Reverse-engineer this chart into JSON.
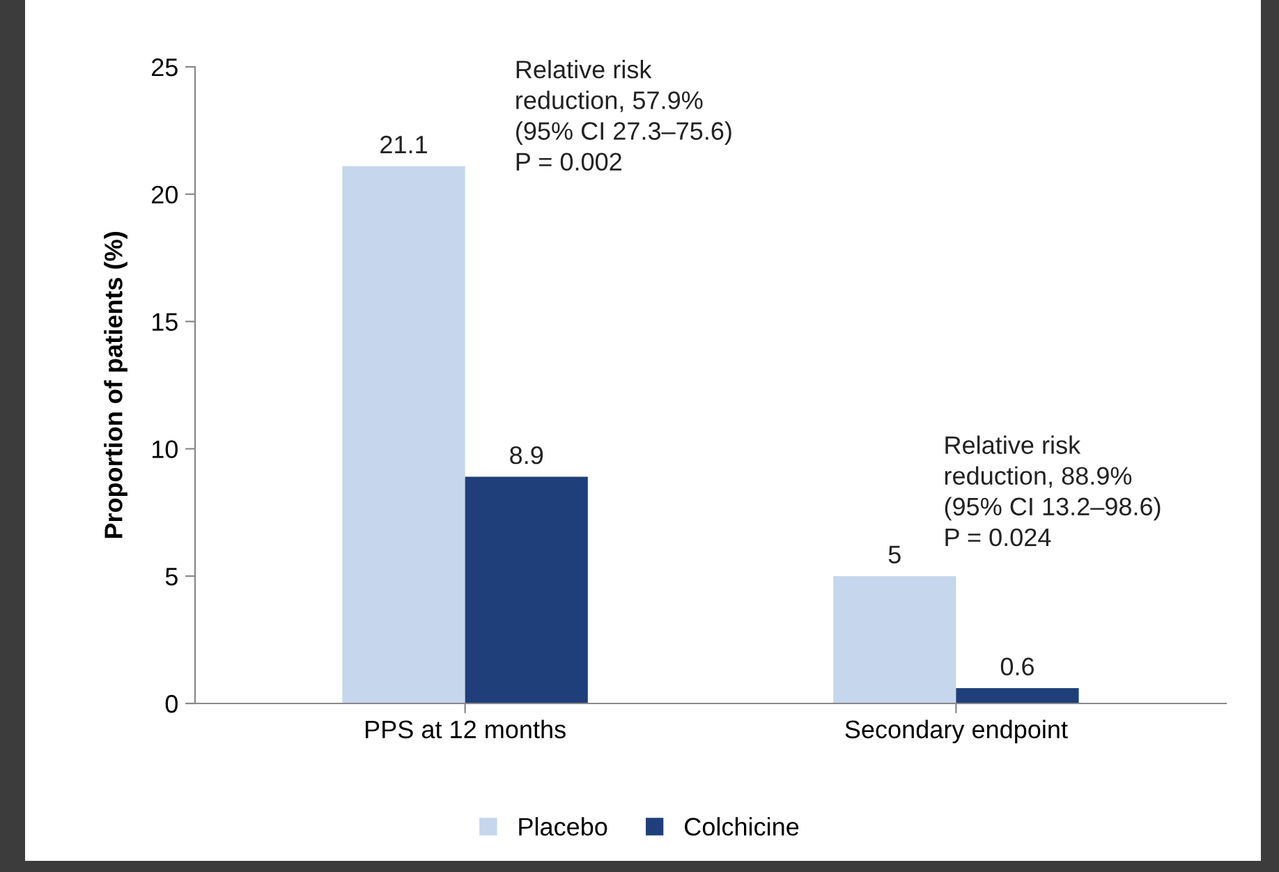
{
  "chart_data": {
    "type": "bar",
    "ylabel": "Proportion of patients (%)",
    "categories": [
      "PPS at 12 months",
      "Secondary endpoint"
    ],
    "series": [
      {
        "name": "Placebo",
        "color": "#c6d6ec",
        "values": [
          21.1,
          5
        ]
      },
      {
        "name": "Colchicine",
        "color": "#1f3f7a",
        "values": [
          8.9,
          0.6
        ]
      }
    ],
    "ylim": [
      0,
      25
    ],
    "yticks": [
      0,
      5,
      10,
      15,
      20,
      25
    ],
    "grid": false,
    "legend": "bottom",
    "data_labels": true,
    "annotations": [
      "Relative risk\nreduction, 57.9%\n(95% CI 27.3–75.6)\nP = 0.002",
      "Relative risk\nreduction, 88.9%\n(95% CI 13.2–98.6)\nP = 0.024"
    ]
  }
}
